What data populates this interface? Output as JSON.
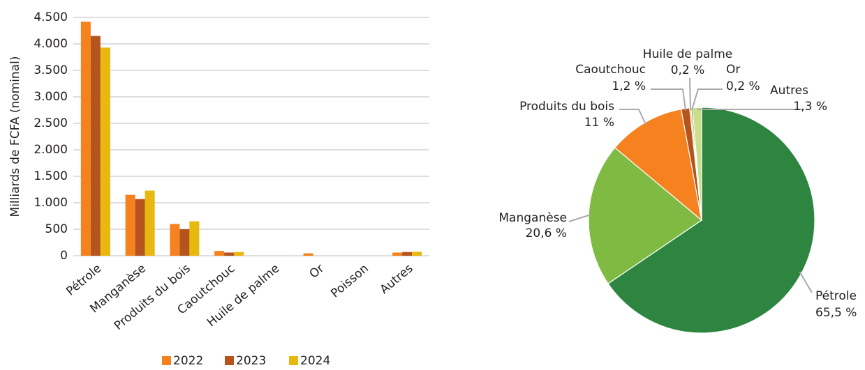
{
  "chart_data": [
    {
      "type": "bar",
      "y_label": "Milliards de FCFA (nominal)",
      "categories": [
        "Pétrole",
        "Manganèse",
        "Produits du bois",
        "Caoutchouc",
        "Huile de palme",
        "Or",
        "Poisson",
        "Autres"
      ],
      "series": [
        {
          "name": "2022",
          "color": "#f5821f",
          "values": [
            4420,
            1150,
            600,
            90,
            0,
            45,
            0,
            60
          ]
        },
        {
          "name": "2023",
          "color": "#b5541c",
          "values": [
            4150,
            1070,
            500,
            60,
            0,
            0,
            0,
            70
          ]
        },
        {
          "name": "2024",
          "color": "#e8b80e",
          "values": [
            3930,
            1230,
            650,
            70,
            0,
            0,
            0,
            75
          ]
        }
      ],
      "ylim": [
        0,
        4500
      ],
      "yticks": [
        0,
        500,
        {
          "value": 1000,
          "label": "1.000"
        },
        {
          "value": 1500,
          "label": "1.500"
        },
        {
          "value": 2000,
          "label": "2.000"
        },
        {
          "value": 2500,
          "label": "2.500"
        },
        {
          "value": 3000,
          "label": "3.000"
        },
        {
          "value": 3500,
          "label": "3.500"
        },
        {
          "value": 4000,
          "label": "4.000"
        },
        {
          "value": 4500,
          "label": "4.500"
        }
      ],
      "grid": true,
      "legend": "bottom"
    },
    {
      "type": "pie",
      "categories": [
        "Pétrole",
        "Manganèse",
        "Produits du bois",
        "Caoutchouc",
        "Huile de palme",
        "Or",
        "Autres"
      ],
      "values": [
        65.5,
        20.6,
        11,
        1.2,
        0.2,
        0.2,
        1.3
      ],
      "value_labels": [
        "65,5 %",
        "20,6 %",
        "11 %",
        "1,2 %",
        "0,2 %",
        "0,2 %",
        "1,3 %"
      ],
      "colors": [
        "#2e8540",
        "#7fba42",
        "#f5821f",
        "#b5541c",
        "#e8b80e",
        "#6b4a1e",
        "#c9e08a"
      ]
    }
  ]
}
